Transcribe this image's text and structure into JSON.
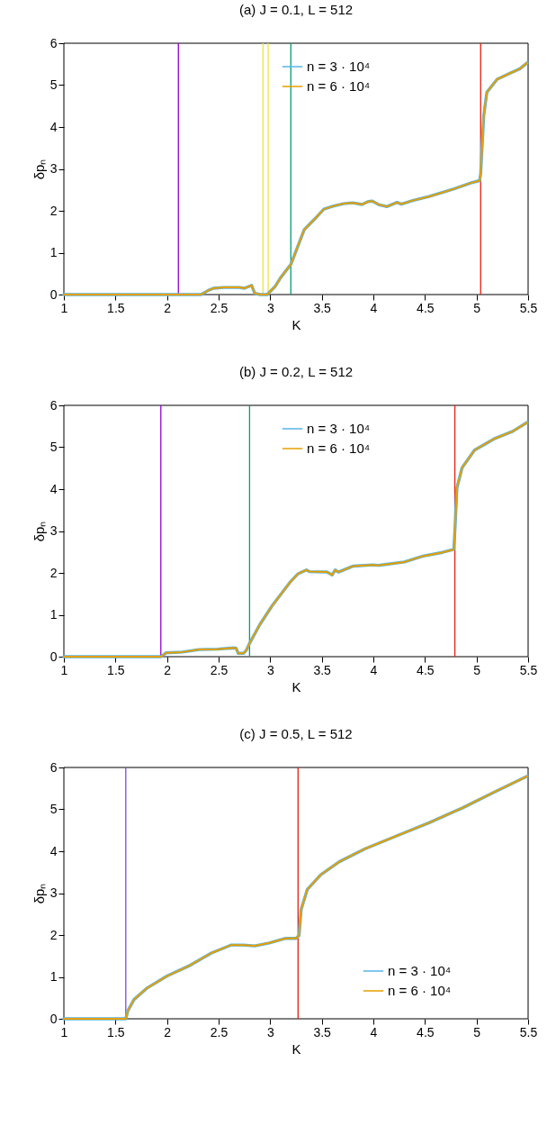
{
  "chart_data": [
    {
      "type": "line",
      "title": "(a) J = 0.1, L = 512",
      "xlabel": "K",
      "ylabel": "δpₙ",
      "xlim": [
        1,
        5.5
      ],
      "ylim": [
        0,
        6
      ],
      "xticks": [
        1,
        1.5,
        2,
        2.5,
        3,
        3.5,
        4,
        4.5,
        5,
        5.5
      ],
      "yticks": [
        0,
        1,
        2,
        3,
        4,
        5,
        6
      ],
      "legend": "top right",
      "x": [
        1,
        1.5,
        2,
        2.33,
        2.4,
        2.45,
        2.55,
        2.7,
        2.75,
        2.82,
        2.85,
        2.9,
        2.97,
        3.05,
        3.1,
        3.2,
        3.33,
        3.43,
        3.52,
        3.61,
        3.71,
        3.8,
        3.89,
        3.95,
        3.99,
        4.05,
        4.13,
        4.23,
        4.27,
        4.39,
        4.54,
        4.79,
        4.95,
        5.03,
        5.04,
        5.07,
        5.1,
        5.2,
        5.32,
        5.42,
        5.49
      ],
      "series": [
        {
          "name": "n = 3 · 10⁴",
          "color": "#56b4e9",
          "values": [
            0,
            0,
            0,
            0,
            0.1,
            0.15,
            0.17,
            0.17,
            0.15,
            0.22,
            0.03,
            0,
            0,
            0.2,
            0.4,
            0.72,
            1.55,
            1.8,
            2.04,
            2.11,
            2.17,
            2.19,
            2.15,
            2.22,
            2.23,
            2.15,
            2.1,
            2.2,
            2.16,
            2.25,
            2.34,
            2.53,
            2.67,
            2.72,
            2.88,
            4.27,
            4.83,
            5.14,
            5.28,
            5.39,
            5.53
          ]
        },
        {
          "name": "n = 6 · 10⁴",
          "color": "#e69f00",
          "values": [
            0,
            0,
            0,
            0,
            0.1,
            0.15,
            0.17,
            0.17,
            0.15,
            0.22,
            0.03,
            0,
            0,
            0.2,
            0.4,
            0.72,
            1.55,
            1.8,
            2.04,
            2.11,
            2.17,
            2.19,
            2.15,
            2.22,
            2.23,
            2.15,
            2.1,
            2.2,
            2.16,
            2.25,
            2.34,
            2.53,
            2.67,
            2.72,
            2.88,
            4.27,
            4.83,
            5.14,
            5.28,
            5.39,
            5.53
          ]
        }
      ],
      "ref_lines": [
        {
          "axis": "x",
          "value": 2.11,
          "color": "#9400d3"
        },
        {
          "axis": "x",
          "value": 2.93,
          "color": "#f0e442"
        },
        {
          "axis": "x",
          "value": 2.98,
          "color": "#f0e442"
        },
        {
          "axis": "x",
          "value": 3.2,
          "color": "#009e73"
        },
        {
          "axis": "x",
          "value": 5.04,
          "color": "#e51e10"
        }
      ]
    },
    {
      "type": "line",
      "title": "(b) J = 0.2, L = 512",
      "xlabel": "K",
      "ylabel": "δpₙ",
      "xlim": [
        1,
        5.5
      ],
      "ylim": [
        0,
        6
      ],
      "xticks": [
        1,
        1.5,
        2,
        2.5,
        3,
        3.5,
        4,
        4.5,
        5,
        5.5
      ],
      "yticks": [
        0,
        1,
        2,
        3,
        4,
        5,
        6
      ],
      "legend": "top right",
      "x": [
        1,
        1.5,
        1.94,
        1.99,
        2.15,
        2.31,
        2.49,
        2.65,
        2.67,
        2.69,
        2.74,
        2.77,
        2.8,
        2.9,
        3.02,
        3.19,
        3.27,
        3.35,
        3.38,
        3.55,
        3.6,
        3.63,
        3.66,
        3.8,
        3.99,
        4.05,
        4.11,
        4.3,
        4.48,
        4.67,
        4.78,
        4.79,
        4.81,
        4.86,
        4.98,
        5.17,
        5.35,
        5.49
      ],
      "series": [
        {
          "name": "n = 3 · 10⁴",
          "color": "#56b4e9",
          "values": [
            0,
            0,
            0,
            0.09,
            0.11,
            0.17,
            0.18,
            0.21,
            0.2,
            0.08,
            0.08,
            0.16,
            0.32,
            0.77,
            1.22,
            1.77,
            1.98,
            2.07,
            2.03,
            2.02,
            1.95,
            2.07,
            2.02,
            2.16,
            2.19,
            2.18,
            2.2,
            2.26,
            2.4,
            2.49,
            2.56,
            2.99,
            4.03,
            4.51,
            4.93,
            5.2,
            5.38,
            5.59
          ]
        },
        {
          "name": "n = 6 · 10⁴",
          "color": "#e69f00",
          "values": [
            0,
            0,
            0,
            0.09,
            0.11,
            0.17,
            0.18,
            0.21,
            0.2,
            0.08,
            0.08,
            0.16,
            0.32,
            0.77,
            1.22,
            1.77,
            1.98,
            2.07,
            2.03,
            2.02,
            1.95,
            2.07,
            2.02,
            2.16,
            2.19,
            2.18,
            2.2,
            2.26,
            2.4,
            2.49,
            2.56,
            2.99,
            4.03,
            4.51,
            4.93,
            5.2,
            5.38,
            5.59
          ]
        }
      ],
      "ref_lines": [
        {
          "axis": "x",
          "value": 1.94,
          "color": "#9400d3"
        },
        {
          "axis": "x",
          "value": 2.8,
          "color": "#009e73"
        },
        {
          "axis": "x",
          "value": 4.79,
          "color": "#e51e10"
        }
      ]
    },
    {
      "type": "line",
      "title": "(c) J = 0.5, L = 512",
      "xlabel": "K",
      "ylabel": "δpₙ",
      "xlim": [
        1,
        5.5
      ],
      "ylim": [
        0,
        6
      ],
      "xticks": [
        1,
        1.5,
        2,
        2.5,
        3,
        3.5,
        4,
        4.5,
        5,
        5.5
      ],
      "yticks": [
        0,
        1,
        2,
        3,
        4,
        5,
        6
      ],
      "legend": "bottom right",
      "x": [
        1,
        1.3,
        1.6,
        1.62,
        1.68,
        1.81,
        2,
        2.21,
        2.43,
        2.62,
        2.74,
        2.85,
        2.99,
        3.15,
        3.25,
        3.28,
        3.3,
        3.36,
        3.49,
        3.67,
        3.92,
        4.23,
        4.54,
        4.86,
        5.17,
        5.49
      ],
      "series": [
        {
          "name": "n = 3 · 10⁴",
          "color": "#56b4e9",
          "values": [
            0,
            0,
            0,
            0.19,
            0.46,
            0.74,
            1.02,
            1.26,
            1.57,
            1.76,
            1.76,
            1.74,
            1.81,
            1.92,
            1.92,
            1.99,
            2.61,
            3.09,
            3.44,
            3.75,
            4.06,
            4.37,
            4.68,
            5.03,
            5.41,
            5.79
          ]
        },
        {
          "name": "n = 6 · 10⁴",
          "color": "#e69f00",
          "values": [
            0,
            0,
            0,
            0.19,
            0.46,
            0.74,
            1.02,
            1.26,
            1.57,
            1.76,
            1.76,
            1.74,
            1.81,
            1.92,
            1.92,
            1.99,
            2.61,
            3.09,
            3.44,
            3.75,
            4.06,
            4.37,
            4.68,
            5.03,
            5.41,
            5.79
          ]
        }
      ],
      "ref_lines": [
        {
          "axis": "x",
          "value": 1.6,
          "color": "#7b4cd8"
        },
        {
          "axis": "x",
          "value": 3.27,
          "color": "#e51e10"
        }
      ]
    }
  ]
}
